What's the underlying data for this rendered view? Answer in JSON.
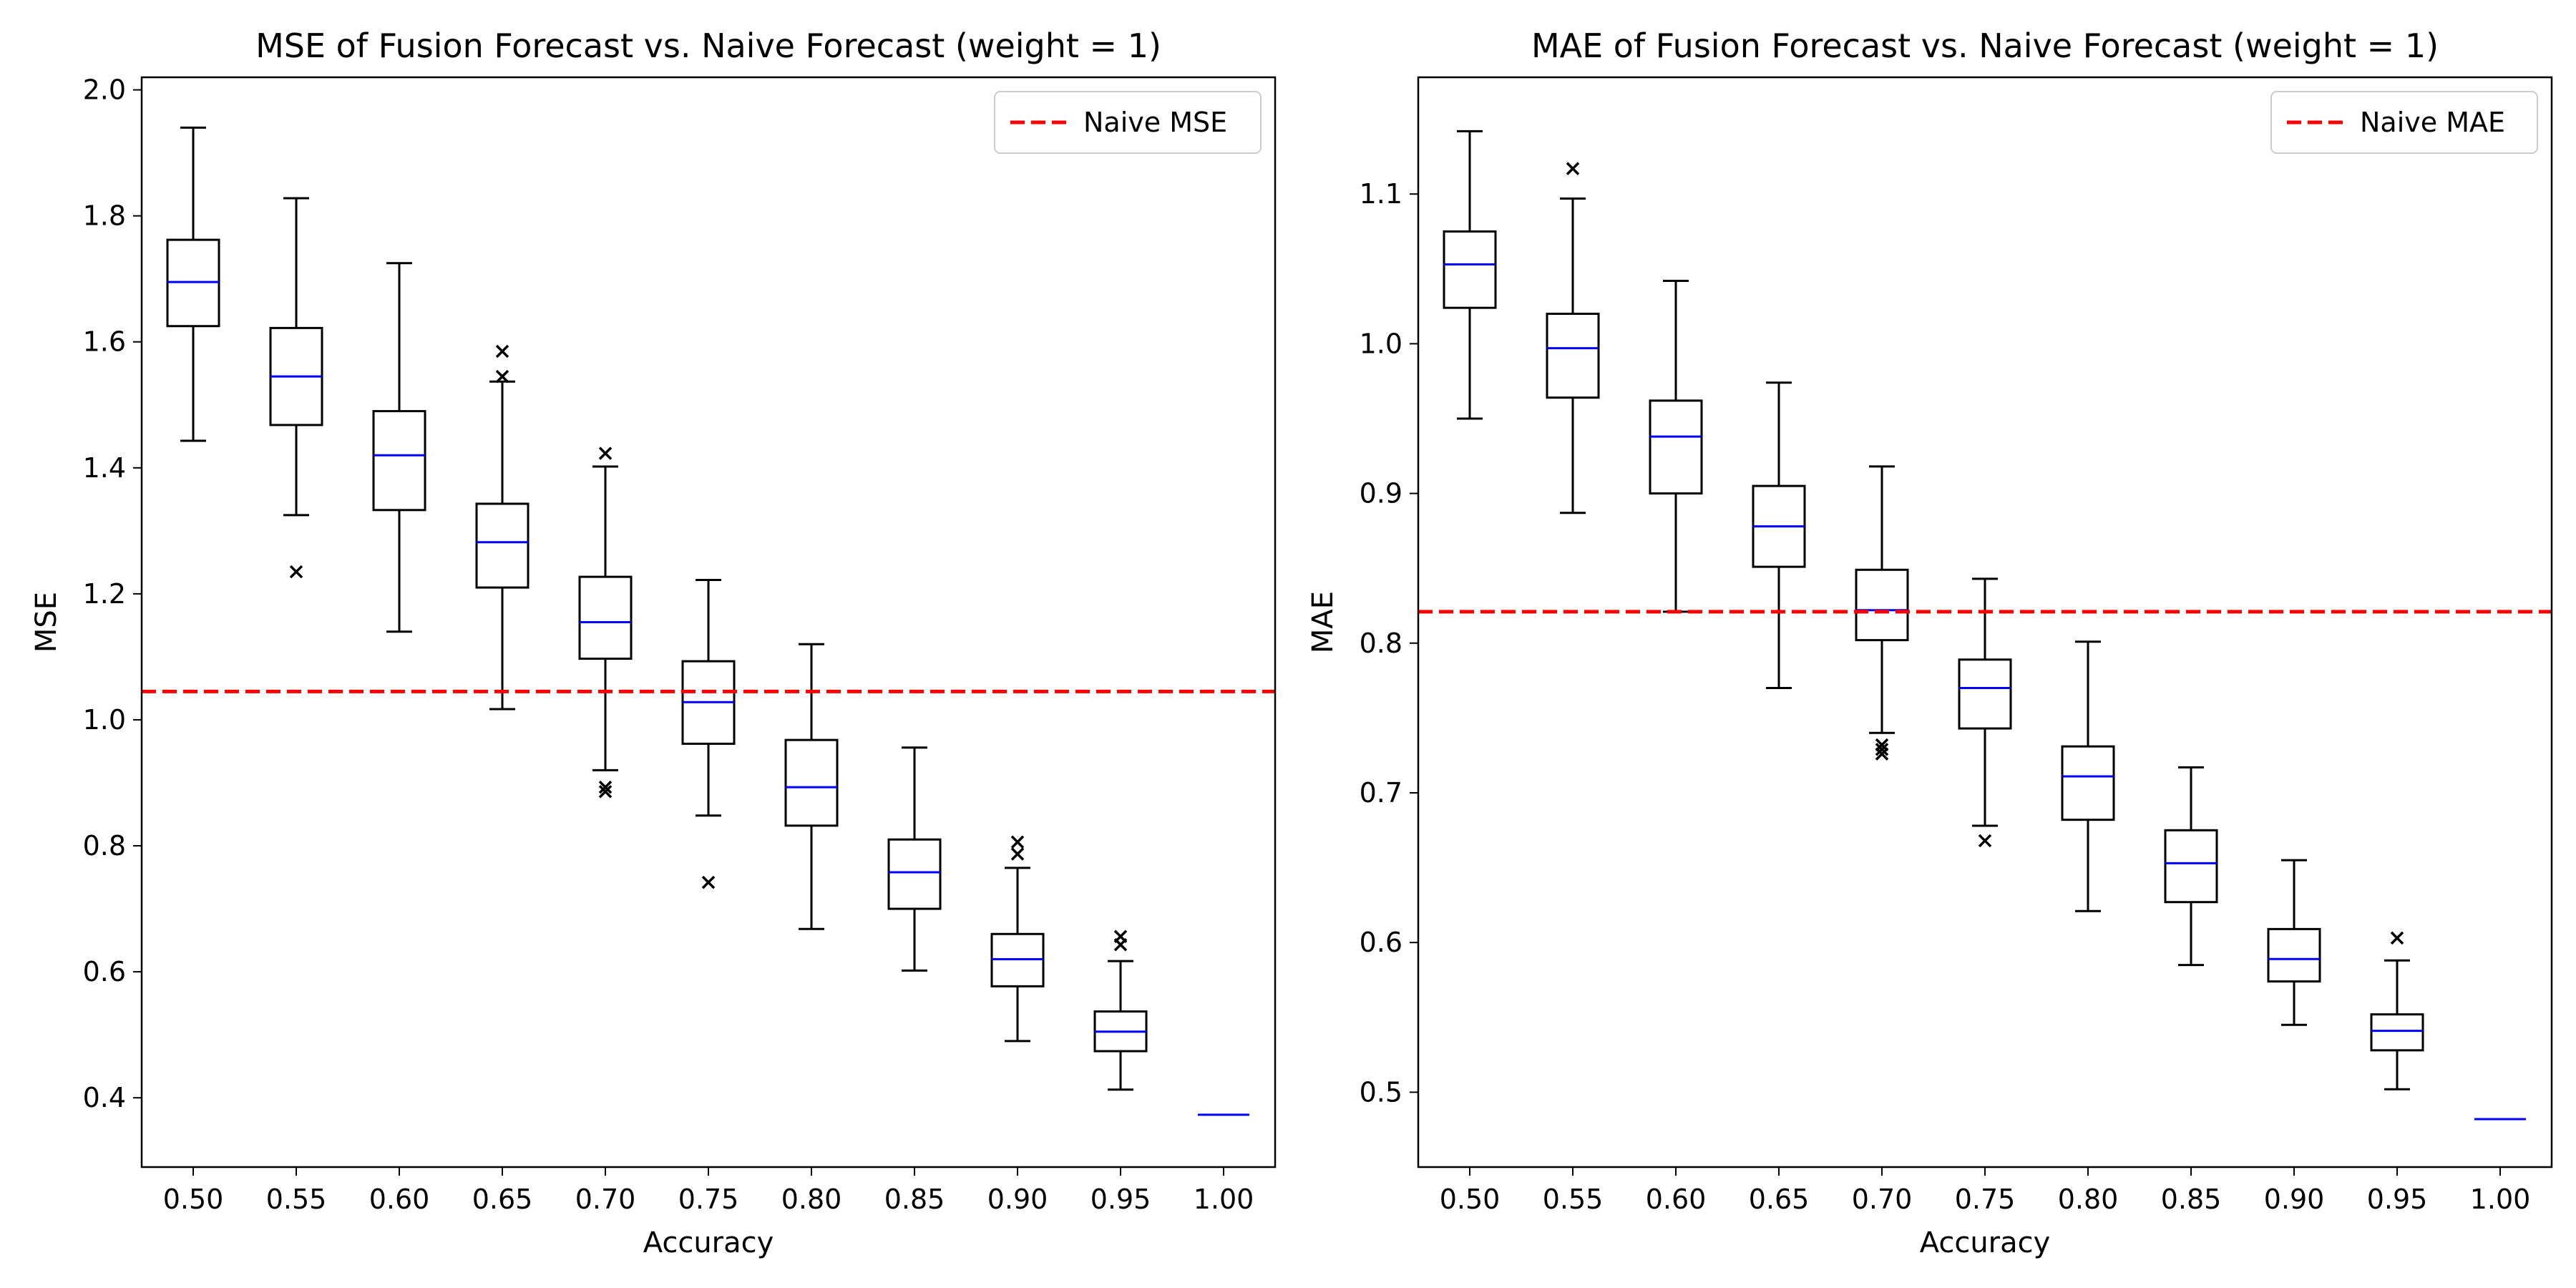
{
  "chart_data": [
    {
      "type": "box",
      "title": "MSE of Fusion Forecast vs. Naive Forecast (weight = 1)",
      "xlabel": "Accuracy",
      "ylabel": "MSE",
      "ylim": [
        0.29,
        2.02
      ],
      "yticks": [
        "0.4",
        "0.6",
        "0.8",
        "1.0",
        "1.2",
        "1.4",
        "1.6",
        "1.8",
        "2.0"
      ],
      "ytick_values": [
        0.4,
        0.6,
        0.8,
        1.0,
        1.2,
        1.4,
        1.6,
        1.8,
        2.0
      ],
      "categories": [
        "0.50",
        "0.55",
        "0.60",
        "0.65",
        "0.70",
        "0.75",
        "0.80",
        "0.85",
        "0.90",
        "0.95",
        "1.00"
      ],
      "boxes": [
        {
          "whislo": 1.443,
          "q1": 1.625,
          "med": 1.695,
          "q3": 1.762,
          "whishi": 1.94,
          "fliers": []
        },
        {
          "whislo": 1.325,
          "q1": 1.468,
          "med": 1.545,
          "q3": 1.622,
          "whishi": 1.828,
          "fliers": [
            1.235
          ]
        },
        {
          "whislo": 1.14,
          "q1": 1.333,
          "med": 1.42,
          "q3": 1.49,
          "whishi": 1.725,
          "fliers": []
        },
        {
          "whislo": 1.017,
          "q1": 1.21,
          "med": 1.282,
          "q3": 1.343,
          "whishi": 1.537,
          "fliers": [
            1.585,
            1.545
          ]
        },
        {
          "whislo": 0.92,
          "q1": 1.097,
          "med": 1.155,
          "q3": 1.227,
          "whishi": 1.402,
          "fliers": [
            1.423,
            0.893,
            0.886
          ]
        },
        {
          "whislo": 0.848,
          "q1": 0.962,
          "med": 1.028,
          "q3": 1.093,
          "whishi": 1.222,
          "fliers": [
            0.742
          ]
        },
        {
          "whislo": 0.668,
          "q1": 0.832,
          "med": 0.893,
          "q3": 0.968,
          "whishi": 1.12,
          "fliers": []
        },
        {
          "whislo": 0.602,
          "q1": 0.7,
          "med": 0.758,
          "q3": 0.81,
          "whishi": 0.956,
          "fliers": []
        },
        {
          "whislo": 0.49,
          "q1": 0.577,
          "med": 0.62,
          "q3": 0.66,
          "whishi": 0.765,
          "fliers": [
            0.806,
            0.787
          ]
        },
        {
          "whislo": 0.413,
          "q1": 0.474,
          "med": 0.505,
          "q3": 0.537,
          "whishi": 0.617,
          "fliers": [
            0.656,
            0.643
          ]
        },
        {
          "whislo": 0.373,
          "q1": 0.373,
          "med": 0.373,
          "q3": 0.373,
          "whishi": 0.373,
          "fliers": []
        }
      ],
      "reference_line": {
        "value": 1.045,
        "label": "Naive MSE",
        "color": "#ff0000"
      },
      "legend": "upper right",
      "median_color": "#0000ff"
    },
    {
      "type": "box",
      "title": "MAE of Fusion Forecast vs. Naive Forecast (weight = 1)",
      "xlabel": "Accuracy",
      "ylabel": "MAE",
      "ylim": [
        0.45,
        1.178
      ],
      "yticks": [
        "0.5",
        "0.6",
        "0.7",
        "0.8",
        "0.9",
        "1.0",
        "1.1"
      ],
      "ytick_values": [
        0.5,
        0.6,
        0.7,
        0.8,
        0.9,
        1.0,
        1.1
      ],
      "categories": [
        "0.50",
        "0.55",
        "0.60",
        "0.65",
        "0.70",
        "0.75",
        "0.80",
        "0.85",
        "0.90",
        "0.95",
        "1.00"
      ],
      "boxes": [
        {
          "whislo": 0.95,
          "q1": 1.024,
          "med": 1.053,
          "q3": 1.075,
          "whishi": 1.142,
          "fliers": []
        },
        {
          "whislo": 0.887,
          "q1": 0.964,
          "med": 0.997,
          "q3": 1.02,
          "whishi": 1.097,
          "fliers": [
            1.117
          ]
        },
        {
          "whislo": 0.821,
          "q1": 0.9,
          "med": 0.938,
          "q3": 0.962,
          "whishi": 1.042,
          "fliers": []
        },
        {
          "whislo": 0.77,
          "q1": 0.851,
          "med": 0.878,
          "q3": 0.905,
          "whishi": 0.974,
          "fliers": []
        },
        {
          "whislo": 0.74,
          "q1": 0.802,
          "med": 0.822,
          "q3": 0.849,
          "whishi": 0.918,
          "fliers": [
            0.732,
            0.729,
            0.726
          ]
        },
        {
          "whislo": 0.678,
          "q1": 0.743,
          "med": 0.77,
          "q3": 0.789,
          "whishi": 0.843,
          "fliers": [
            0.668
          ]
        },
        {
          "whislo": 0.621,
          "q1": 0.682,
          "med": 0.711,
          "q3": 0.731,
          "whishi": 0.801,
          "fliers": []
        },
        {
          "whislo": 0.585,
          "q1": 0.627,
          "med": 0.653,
          "q3": 0.675,
          "whishi": 0.717,
          "fliers": []
        },
        {
          "whislo": 0.545,
          "q1": 0.574,
          "med": 0.589,
          "q3": 0.609,
          "whishi": 0.655,
          "fliers": []
        },
        {
          "whislo": 0.502,
          "q1": 0.528,
          "med": 0.541,
          "q3": 0.552,
          "whishi": 0.588,
          "fliers": [
            0.603
          ]
        },
        {
          "whislo": 0.482,
          "q1": 0.482,
          "med": 0.482,
          "q3": 0.482,
          "whishi": 0.482,
          "fliers": []
        }
      ],
      "reference_line": {
        "value": 0.821,
        "label": "Naive MAE",
        "color": "#ff0000"
      },
      "legend": "upper right",
      "median_color": "#0000ff"
    }
  ]
}
